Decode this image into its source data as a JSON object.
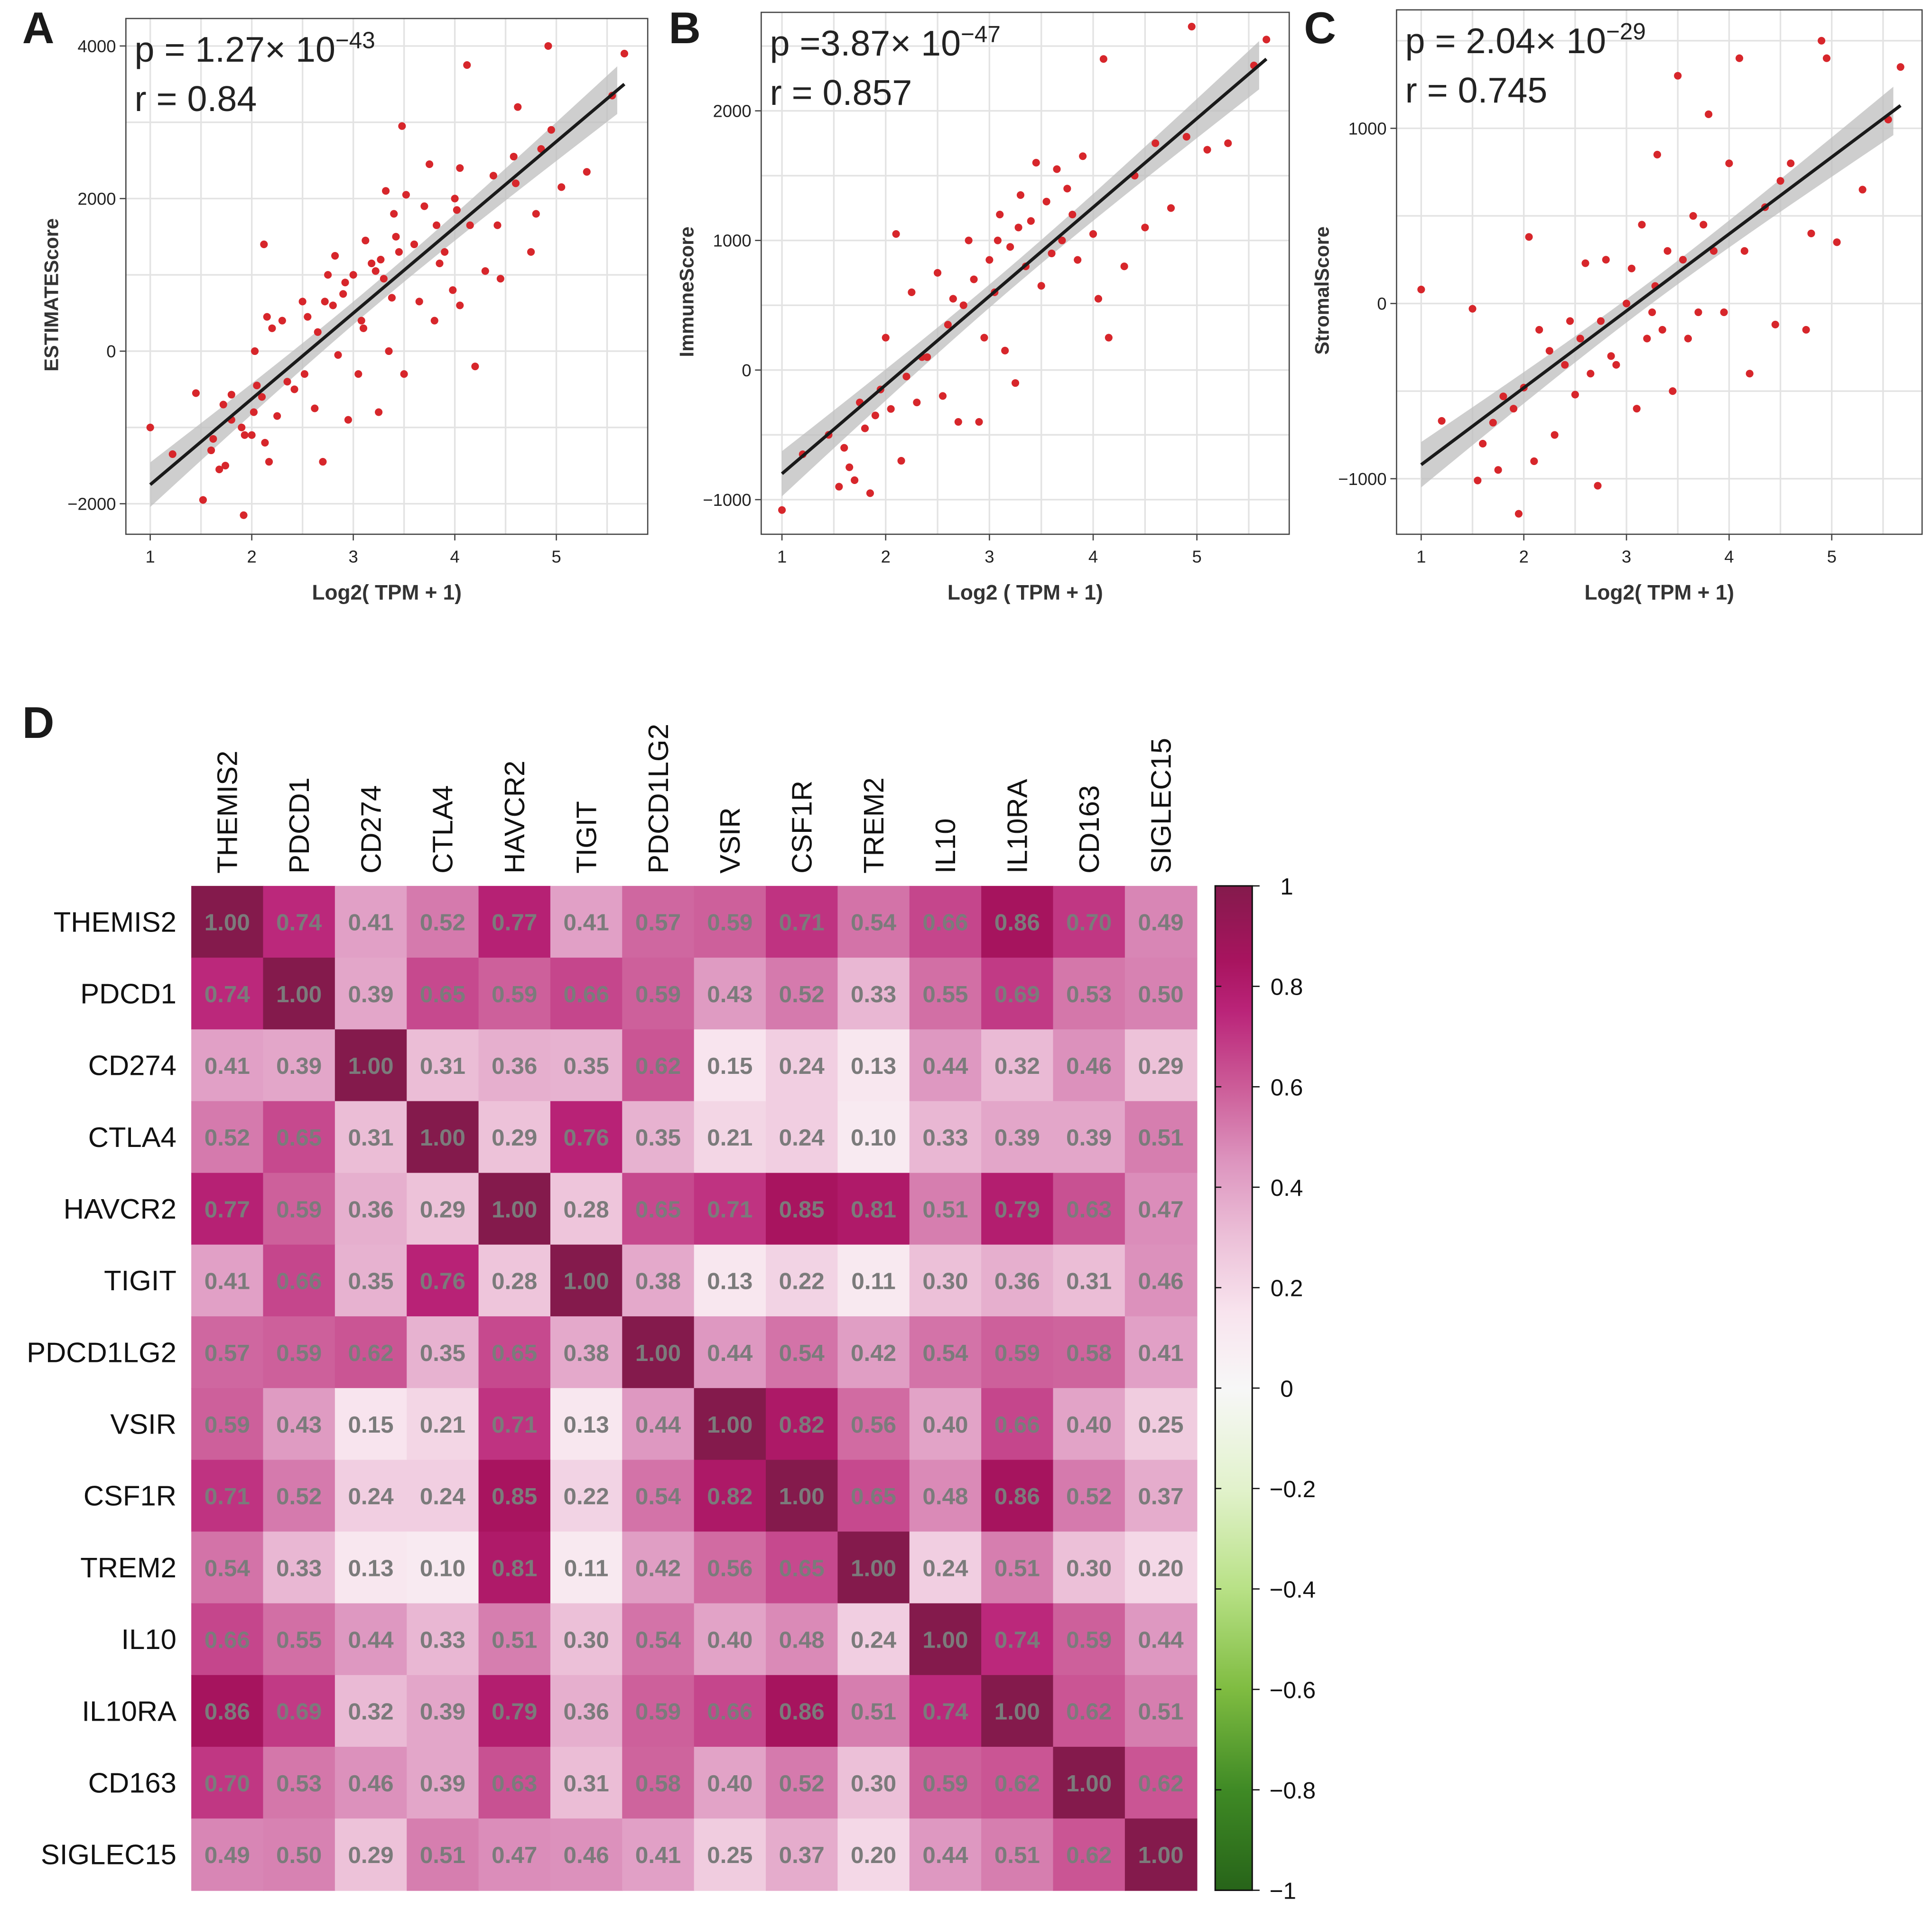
{
  "panels": {
    "A": "A",
    "B": "B",
    "C": "C",
    "D": "D"
  },
  "colors": {
    "point": "#d7262b",
    "fit": "#1a1a1a",
    "band": "#bdbdbd",
    "grid": "#e3e3e3",
    "value_text": "#7b7b7b"
  },
  "chart_data": [
    {
      "type": "scatter",
      "panel": "A",
      "p_label": "p = 1.27× 10",
      "p_exp": "−43",
      "r_label": "r = 0.84",
      "xlabel": "Log2( TPM + 1)",
      "ylabel": "ESTIMATEScore",
      "xlim": [
        0.76,
        5.9
      ],
      "ylim": [
        -2400,
        4360
      ],
      "xticks": [
        1,
        2,
        3,
        4,
        5
      ],
      "yticks": [
        -2000,
        0,
        2000,
        4000
      ],
      "xtick_labels": [
        "1",
        "2",
        "3",
        "4",
        "5"
      ],
      "ytick_labels": [
        "−2000",
        "0",
        "2000",
        "4000"
      ],
      "fit_line": [
        [
          1,
          -1750
        ],
        [
          5.67,
          3500
        ]
      ],
      "points": [
        [
          1,
          -1000
        ],
        [
          1.22,
          -1350
        ],
        [
          1.45,
          -550
        ],
        [
          1.52,
          -1950
        ],
        [
          1.6,
          -1300
        ],
        [
          1.62,
          -1150
        ],
        [
          1.68,
          -1550
        ],
        [
          1.72,
          -700
        ],
        [
          1.74,
          -1500
        ],
        [
          1.8,
          -570
        ],
        [
          1.8,
          -900
        ],
        [
          1.9,
          -1000
        ],
        [
          1.92,
          -2150
        ],
        [
          1.93,
          -1100
        ],
        [
          2.0,
          -1100
        ],
        [
          2.02,
          -800
        ],
        [
          2.03,
          0
        ],
        [
          2.05,
          -450
        ],
        [
          2.1,
          -600
        ],
        [
          2.12,
          1400
        ],
        [
          2.13,
          -1200
        ],
        [
          2.15,
          450
        ],
        [
          2.17,
          -1450
        ],
        [
          2.2,
          300
        ],
        [
          2.25,
          -850
        ],
        [
          2.3,
          400
        ],
        [
          2.35,
          -400
        ],
        [
          2.42,
          -500
        ],
        [
          2.5,
          650
        ],
        [
          2.52,
          -300
        ],
        [
          2.55,
          450
        ],
        [
          2.62,
          -750
        ],
        [
          2.65,
          250
        ],
        [
          2.7,
          -1450
        ],
        [
          2.72,
          650
        ],
        [
          2.75,
          1000
        ],
        [
          2.8,
          600
        ],
        [
          2.82,
          1250
        ],
        [
          2.85,
          -50
        ],
        [
          2.9,
          750
        ],
        [
          2.92,
          900
        ],
        [
          2.95,
          -900
        ],
        [
          3.0,
          1000
        ],
        [
          3.05,
          -300
        ],
        [
          3.08,
          400
        ],
        [
          3.1,
          300
        ],
        [
          3.12,
          1450
        ],
        [
          3.18,
          1150
        ],
        [
          3.22,
          1050
        ],
        [
          3.25,
          -800
        ],
        [
          3.27,
          1200
        ],
        [
          3.3,
          950
        ],
        [
          3.32,
          2100
        ],
        [
          3.35,
          0
        ],
        [
          3.38,
          700
        ],
        [
          3.4,
          1800
        ],
        [
          3.42,
          1500
        ],
        [
          3.45,
          1300
        ],
        [
          3.48,
          2950
        ],
        [
          3.5,
          -300
        ],
        [
          3.52,
          2050
        ],
        [
          3.6,
          1400
        ],
        [
          3.65,
          650
        ],
        [
          3.7,
          1900
        ],
        [
          3.75,
          2450
        ],
        [
          3.8,
          400
        ],
        [
          3.82,
          1650
        ],
        [
          3.85,
          1150
        ],
        [
          3.9,
          1300
        ],
        [
          3.98,
          800
        ],
        [
          4.0,
          2000
        ],
        [
          4.02,
          1850
        ],
        [
          4.05,
          2400
        ],
        [
          4.05,
          600
        ],
        [
          4.12,
          3750
        ],
        [
          4.15,
          1650
        ],
        [
          4.2,
          -200
        ],
        [
          4.3,
          1050
        ],
        [
          4.38,
          2300
        ],
        [
          4.42,
          1650
        ],
        [
          4.45,
          950
        ],
        [
          4.58,
          2550
        ],
        [
          4.6,
          2200
        ],
        [
          4.62,
          3200
        ],
        [
          4.75,
          1300
        ],
        [
          4.8,
          1800
        ],
        [
          4.85,
          2650
        ],
        [
          4.92,
          4000
        ],
        [
          4.95,
          2900
        ],
        [
          5.05,
          2150
        ],
        [
          5.3,
          2350
        ],
        [
          5.55,
          3350
        ],
        [
          5.67,
          3900
        ]
      ]
    },
    {
      "type": "scatter",
      "panel": "B",
      "p_label": "p =3.87× 10",
      "p_exp": "−47",
      "r_label": "r = 0.857",
      "xlabel": "Log2 ( TPM + 1)",
      "ylabel": "ImmuneScore",
      "xlim": [
        0.8,
        5.89
      ],
      "ylim": [
        -1267,
        2760
      ],
      "xticks": [
        1,
        2,
        3,
        4,
        5
      ],
      "yticks": [
        -1000,
        0,
        1000,
        2000
      ],
      "xtick_labels": [
        "1",
        "2",
        "3",
        "4",
        "5"
      ],
      "ytick_labels": [
        "−1000",
        "0",
        "1000",
        "2000"
      ],
      "fit_line": [
        [
          1,
          -800
        ],
        [
          5.67,
          2400
        ]
      ],
      "points": [
        [
          1,
          -1080
        ],
        [
          1.2,
          -650
        ],
        [
          1.45,
          -500
        ],
        [
          1.55,
          -900
        ],
        [
          1.6,
          -600
        ],
        [
          1.65,
          -750
        ],
        [
          1.7,
          -850
        ],
        [
          1.75,
          -250
        ],
        [
          1.8,
          -450
        ],
        [
          1.85,
          -950
        ],
        [
          1.9,
          -350
        ],
        [
          1.95,
          -150
        ],
        [
          2.0,
          250
        ],
        [
          2.05,
          -300
        ],
        [
          2.1,
          1050
        ],
        [
          2.15,
          -700
        ],
        [
          2.2,
          -50
        ],
        [
          2.25,
          600
        ],
        [
          2.3,
          -250
        ],
        [
          2.35,
          100
        ],
        [
          2.4,
          100
        ],
        [
          2.5,
          750
        ],
        [
          2.55,
          -200
        ],
        [
          2.6,
          350
        ],
        [
          2.65,
          550
        ],
        [
          2.7,
          -400
        ],
        [
          2.75,
          500
        ],
        [
          2.8,
          1000
        ],
        [
          2.85,
          700
        ],
        [
          2.9,
          -400
        ],
        [
          2.95,
          250
        ],
        [
          3.0,
          850
        ],
        [
          3.05,
          600
        ],
        [
          3.08,
          1000
        ],
        [
          3.1,
          1200
        ],
        [
          3.15,
          150
        ],
        [
          3.2,
          950
        ],
        [
          3.25,
          -100
        ],
        [
          3.28,
          1100
        ],
        [
          3.3,
          1350
        ],
        [
          3.35,
          800
        ],
        [
          3.4,
          1150
        ],
        [
          3.45,
          1600
        ],
        [
          3.5,
          650
        ],
        [
          3.55,
          1300
        ],
        [
          3.6,
          900
        ],
        [
          3.65,
          1550
        ],
        [
          3.7,
          1000
        ],
        [
          3.75,
          1400
        ],
        [
          3.8,
          1200
        ],
        [
          3.85,
          850
        ],
        [
          3.9,
          1650
        ],
        [
          4.0,
          1050
        ],
        [
          4.05,
          550
        ],
        [
          4.1,
          2400
        ],
        [
          4.15,
          250
        ],
        [
          4.3,
          800
        ],
        [
          4.4,
          1500
        ],
        [
          4.5,
          1100
        ],
        [
          4.6,
          1750
        ],
        [
          4.75,
          1250
        ],
        [
          4.9,
          1800
        ],
        [
          4.95,
          2650
        ],
        [
          5.1,
          1700
        ],
        [
          5.3,
          1750
        ],
        [
          5.55,
          2350
        ],
        [
          5.67,
          2550
        ]
      ]
    },
    {
      "type": "scatter",
      "panel": "C",
      "p_label": "p = 2.04× 10",
      "p_exp": "−29",
      "r_label": "r = 0.745",
      "xlabel": "Log2( TPM + 1)",
      "ylabel": "StromalScore",
      "xlim": [
        0.76,
        5.88
      ],
      "ylim": [
        -1317,
        1676
      ],
      "xticks": [
        1,
        2,
        3,
        4,
        5
      ],
      "yticks": [
        -1000,
        0,
        1000
      ],
      "xtick_labels": [
        "1",
        "2",
        "3",
        "4",
        "5"
      ],
      "ytick_labels": [
        "−1000",
        "0",
        "1000"
      ],
      "fit_line": [
        [
          1,
          -920
        ],
        [
          5.67,
          1130
        ]
      ],
      "points": [
        [
          1,
          80
        ],
        [
          1.2,
          -670
        ],
        [
          1.5,
          -30
        ],
        [
          1.55,
          -1010
        ],
        [
          1.6,
          -800
        ],
        [
          1.7,
          -680
        ],
        [
          1.75,
          -950
        ],
        [
          1.8,
          -530
        ],
        [
          1.9,
          -600
        ],
        [
          1.95,
          -1200
        ],
        [
          2.0,
          -480
        ],
        [
          2.05,
          380
        ],
        [
          2.1,
          -900
        ],
        [
          2.15,
          -150
        ],
        [
          2.25,
          -270
        ],
        [
          2.3,
          -750
        ],
        [
          2.4,
          -350
        ],
        [
          2.45,
          -100
        ],
        [
          2.5,
          -520
        ],
        [
          2.55,
          -200
        ],
        [
          2.6,
          230
        ],
        [
          2.65,
          -400
        ],
        [
          2.72,
          -1040
        ],
        [
          2.75,
          -100
        ],
        [
          2.8,
          250
        ],
        [
          2.85,
          -300
        ],
        [
          2.9,
          -350
        ],
        [
          3.0,
          0
        ],
        [
          3.05,
          200
        ],
        [
          3.1,
          -600
        ],
        [
          3.15,
          450
        ],
        [
          3.2,
          -200
        ],
        [
          3.25,
          -50
        ],
        [
          3.28,
          100
        ],
        [
          3.3,
          850
        ],
        [
          3.35,
          -150
        ],
        [
          3.4,
          300
        ],
        [
          3.45,
          -500
        ],
        [
          3.5,
          1300
        ],
        [
          3.55,
          250
        ],
        [
          3.6,
          -200
        ],
        [
          3.65,
          500
        ],
        [
          3.7,
          -50
        ],
        [
          3.75,
          450
        ],
        [
          3.8,
          1080
        ],
        [
          3.85,
          300
        ],
        [
          3.95,
          -50
        ],
        [
          4.0,
          800
        ],
        [
          4.1,
          1400
        ],
        [
          4.15,
          300
        ],
        [
          4.2,
          -400
        ],
        [
          4.35,
          550
        ],
        [
          4.45,
          -120
        ],
        [
          4.5,
          700
        ],
        [
          4.6,
          800
        ],
        [
          4.75,
          -150
        ],
        [
          4.8,
          400
        ],
        [
          4.9,
          1500
        ],
        [
          4.95,
          1400
        ],
        [
          5.05,
          350
        ],
        [
          5.3,
          650
        ],
        [
          5.55,
          1050
        ],
        [
          5.67,
          1350
        ]
      ]
    },
    {
      "type": "heatmap",
      "panel": "D",
      "labels": [
        "THEMIS2",
        "PDCD1",
        "CD274",
        "CTLA4",
        "HAVCR2",
        "TIGIT",
        "PDCD1LG2",
        "VSIR",
        "CSF1R",
        "TREM2",
        "IL10",
        "IL10RA",
        "CD163",
        "SIGLEC15"
      ],
      "values": [
        [
          1.0,
          0.74,
          0.41,
          0.52,
          0.77,
          0.41,
          0.57,
          0.59,
          0.71,
          0.54,
          0.66,
          0.86,
          0.7,
          0.49
        ],
        [
          0.74,
          1.0,
          0.39,
          0.65,
          0.59,
          0.66,
          0.59,
          0.43,
          0.52,
          0.33,
          0.55,
          0.69,
          0.53,
          0.5
        ],
        [
          0.41,
          0.39,
          1.0,
          0.31,
          0.36,
          0.35,
          0.62,
          0.15,
          0.24,
          0.13,
          0.44,
          0.32,
          0.46,
          0.29
        ],
        [
          0.52,
          0.65,
          0.31,
          1.0,
          0.29,
          0.76,
          0.35,
          0.21,
          0.24,
          0.1,
          0.33,
          0.39,
          0.39,
          0.51
        ],
        [
          0.77,
          0.59,
          0.36,
          0.29,
          1.0,
          0.28,
          0.65,
          0.71,
          0.85,
          0.81,
          0.51,
          0.79,
          0.63,
          0.47
        ],
        [
          0.41,
          0.66,
          0.35,
          0.76,
          0.28,
          1.0,
          0.38,
          0.13,
          0.22,
          0.11,
          0.3,
          0.36,
          0.31,
          0.46
        ],
        [
          0.57,
          0.59,
          0.62,
          0.35,
          0.65,
          0.38,
          1.0,
          0.44,
          0.54,
          0.42,
          0.54,
          0.59,
          0.58,
          0.41
        ],
        [
          0.59,
          0.43,
          0.15,
          0.21,
          0.71,
          0.13,
          0.44,
          1.0,
          0.82,
          0.56,
          0.4,
          0.66,
          0.4,
          0.25
        ],
        [
          0.71,
          0.52,
          0.24,
          0.24,
          0.85,
          0.22,
          0.54,
          0.82,
          1.0,
          0.65,
          0.48,
          0.86,
          0.52,
          0.37
        ],
        [
          0.54,
          0.33,
          0.13,
          0.1,
          0.81,
          0.11,
          0.42,
          0.56,
          0.65,
          1.0,
          0.24,
          0.51,
          0.3,
          0.2
        ],
        [
          0.66,
          0.55,
          0.44,
          0.33,
          0.51,
          0.3,
          0.54,
          0.4,
          0.48,
          0.24,
          1.0,
          0.74,
          0.59,
          0.44
        ],
        [
          0.86,
          0.69,
          0.32,
          0.39,
          0.79,
          0.36,
          0.59,
          0.66,
          0.86,
          0.51,
          0.74,
          1.0,
          0.62,
          0.51
        ],
        [
          0.7,
          0.53,
          0.46,
          0.39,
          0.63,
          0.31,
          0.58,
          0.4,
          0.52,
          0.3,
          0.59,
          0.62,
          1.0,
          0.62
        ],
        [
          0.49,
          0.5,
          0.29,
          0.51,
          0.47,
          0.46,
          0.41,
          0.25,
          0.37,
          0.2,
          0.44,
          0.51,
          0.62,
          1.0
        ]
      ],
      "colorbar": {
        "range": [
          -1,
          1
        ],
        "ticks": [
          1,
          0.8,
          0.6,
          0.4,
          0.2,
          0,
          -0.2,
          -0.4,
          -0.6,
          -0.8,
          -1
        ],
        "tick_labels": [
          "1",
          "0.8",
          "0.6",
          "0.4",
          "0.2",
          "0",
          "−0.2",
          "−0.4",
          "−0.6",
          "−0.8",
          "−1"
        ],
        "stops": [
          [
            -1,
            "#276419"
          ],
          [
            -0.8,
            "#3f8a25"
          ],
          [
            -0.6,
            "#7fbc41"
          ],
          [
            -0.4,
            "#b8e186"
          ],
          [
            -0.2,
            "#e2f2cc"
          ],
          [
            0,
            "#f7f7f7"
          ],
          [
            0.15,
            "#f8e4ee"
          ],
          [
            0.3,
            "#ecc0d8"
          ],
          [
            0.45,
            "#dd95bf"
          ],
          [
            0.6,
            "#cc5c98"
          ],
          [
            0.75,
            "#ba2479"
          ],
          [
            0.85,
            "#a8145f"
          ],
          [
            1,
            "#841a4c"
          ]
        ]
      }
    }
  ]
}
